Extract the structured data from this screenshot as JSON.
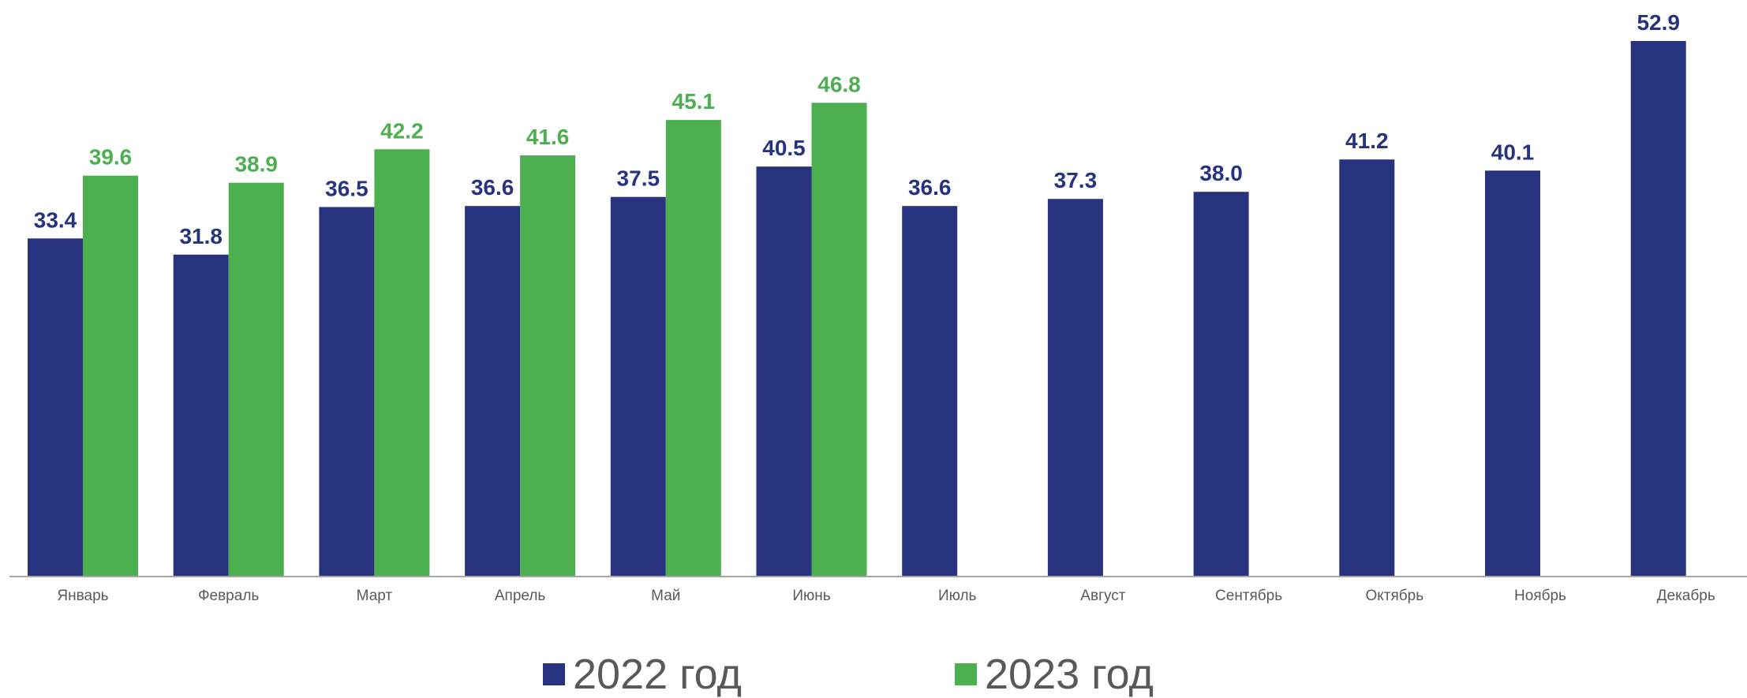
{
  "chart_data": {
    "type": "bar",
    "categories": [
      "Январь",
      "Февраль",
      "Март",
      "Апрель",
      "Май",
      "Июнь",
      "Июль",
      "Август",
      "Сентябрь",
      "Октябрь",
      "Ноябрь",
      "Декабрь"
    ],
    "series": [
      {
        "name": "2022 год",
        "color": "#283380",
        "values": [
          33.4,
          31.8,
          36.5,
          36.6,
          37.5,
          40.5,
          36.6,
          37.3,
          38.0,
          41.2,
          40.1,
          52.9
        ],
        "labels": [
          "33.4",
          "31.8",
          "36.5",
          "36.6",
          "37.5",
          "40.5",
          "36.6",
          "37.3",
          "38.0",
          "41.2",
          "40.1",
          "52.9"
        ]
      },
      {
        "name": "2023 год",
        "color": "#4caf50",
        "values": [
          39.6,
          38.9,
          42.2,
          41.6,
          45.1,
          46.8,
          null,
          null,
          null,
          null,
          null,
          null
        ],
        "labels": [
          "39.6",
          "38.9",
          "42.2",
          "41.6",
          "45.1",
          "46.8",
          null,
          null,
          null,
          null,
          null,
          null
        ]
      }
    ],
    "ylim": [
      0,
      53
    ],
    "grid": false,
    "legend_position": "bottom-center",
    "axis_color": "#a6a6a6",
    "tick_label_color": "#595959"
  }
}
